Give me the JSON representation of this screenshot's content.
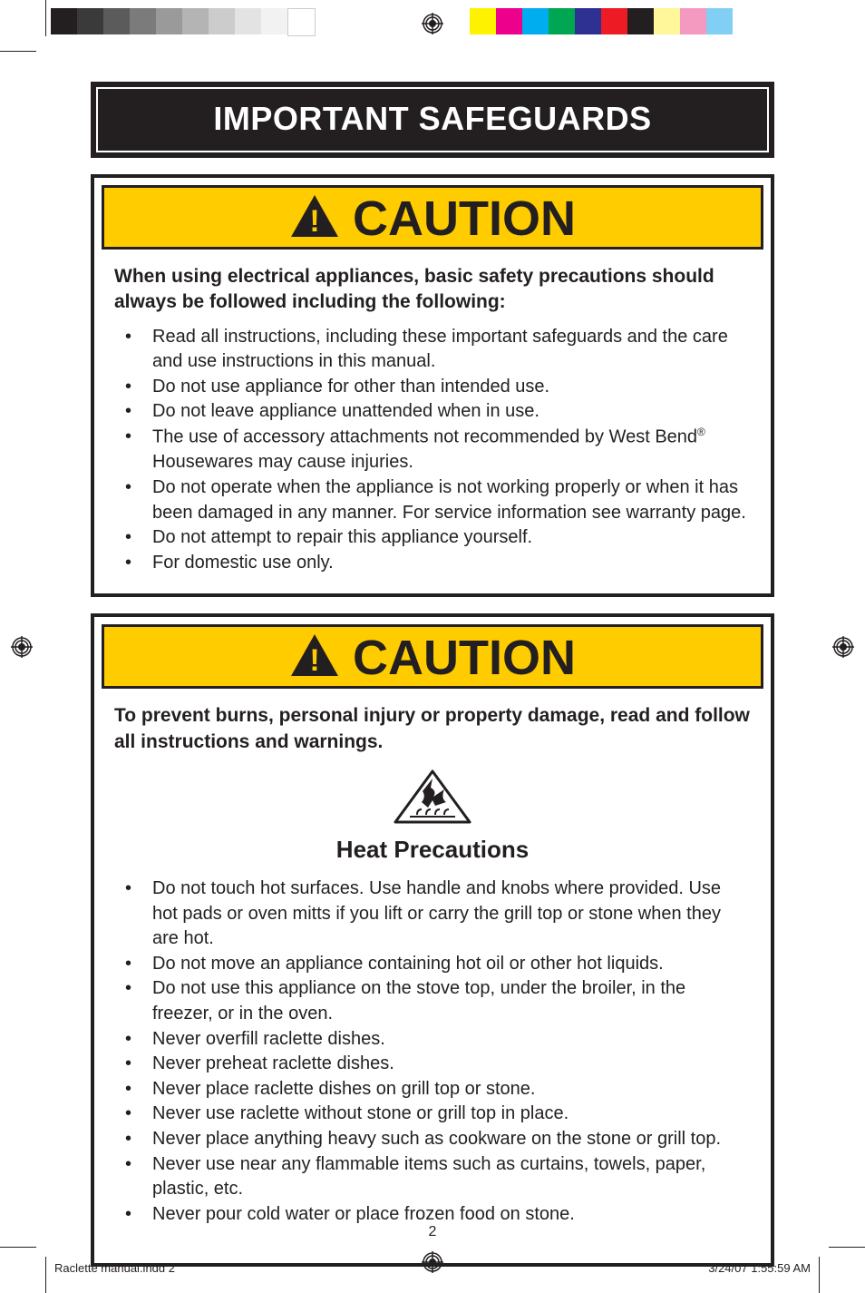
{
  "registration_color": "#231f20",
  "gray_swatches": [
    "#231f20",
    "#3a3a3a",
    "#5b5b5b",
    "#7b7b7b",
    "#9a9a9a",
    "#b4b4b4",
    "#cccccc",
    "#e3e3e3",
    "#f2f2f2",
    "#ffffff"
  ],
  "color_swatches": [
    "#fff200",
    "#ec008c",
    "#00aeef",
    "#00a651",
    "#2e3192",
    "#ed1c24",
    "#231f20",
    "#fff799",
    "#f49ac1",
    "#82cff5"
  ],
  "title": "IMPORTANT SAFEGUARDS",
  "title_bg": "#231f20",
  "title_text_color": "#ffffff",
  "caution_label": "CAUTION",
  "caution_bg": "#ffcc00",
  "caution_border": "#231f20",
  "box_border": "#231f20",
  "section1": {
    "intro": "When using electrical appliances, basic safety precautions should always be followed including the following:",
    "items": [
      "Read all instructions, including these important safeguards and the care and use instructions in this manual.",
      "Do not use appliance for other than intended use.",
      "Do not leave appliance unattended when in use.",
      "The use of accessory attachments not recommended by West Bend® Housewares may cause injuries.",
      "Do not operate when the appliance is not working properly or when it has been damaged in any manner.  For service information see warranty page.",
      "Do not attempt to repair this appliance yourself.",
      "For domestic use only."
    ]
  },
  "section2": {
    "intro": "To prevent burns, personal injury or property damage, read and follow all instructions and warnings.",
    "subheading": "Heat Precautions",
    "items": [
      "Do not touch hot surfaces. Use handle and knobs where provided. Use hot pads or oven mitts if you lift or carry the grill top or stone when they are hot.",
      "Do not move an appliance containing hot oil or other hot liquids.",
      "Do not use this appliance on the stove top, under the broiler, in the freezer, or in the oven.",
      "Never overfill raclette dishes.",
      "Never preheat raclette dishes.",
      "Never place raclette dishes on grill top or stone.",
      "Never use raclette without stone or grill top in place.",
      "Never place anything heavy such as cookware on the stone or grill top.",
      "Never use near any flammable items such as curtains, towels, paper, plastic, etc.",
      "Never pour cold water or place frozen food on stone."
    ]
  },
  "page_number": "2",
  "footer": {
    "file": "Raclette manual.indd   2",
    "datetime": "3/24/07   1:55:59 AM"
  },
  "icons": {
    "warning_triangle": "warning-triangle-icon",
    "hot_surface": "hot-surface-icon",
    "registration": "registration-mark-icon"
  },
  "typography": {
    "title_fontsize": 36,
    "caution_fontsize": 54,
    "intro_fontsize": 21,
    "body_fontsize": 20,
    "subhead_fontsize": 26
  }
}
